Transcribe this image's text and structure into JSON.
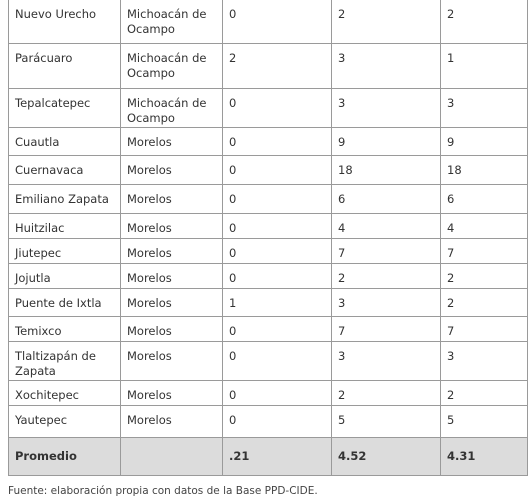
{
  "table": {
    "rows": [
      [
        "Nuevo Urecho",
        "Michoacán de Ocampo",
        "0",
        "2",
        "2"
      ],
      [
        "Parácuaro",
        "Michoacán de Ocampo",
        "2",
        "3",
        "1"
      ],
      [
        "Tepalcatepec",
        "Michoacán de Ocampo",
        "0",
        "3",
        "3"
      ],
      [
        "Cuautla",
        "Morelos",
        "0",
        "9",
        "9"
      ],
      [
        "Cuernavaca",
        "Morelos",
        "0",
        "18",
        "18"
      ],
      [
        "Emiliano Zapata",
        "Morelos",
        "0",
        "6",
        "6"
      ],
      [
        "Huitzilac",
        "Morelos",
        "0",
        "4",
        "4"
      ],
      [
        "Jiutepec",
        "Morelos",
        "0",
        "7",
        "7"
      ],
      [
        "Jojutla",
        "Morelos",
        "0",
        "2",
        "2"
      ],
      [
        "Puente de Ixtla",
        "Morelos",
        "1",
        "3",
        "2"
      ],
      [
        "Temixco",
        "Morelos",
        "0",
        "7",
        "7"
      ],
      [
        "Tlaltizapán de Zapata",
        "Morelos",
        "0",
        "3",
        "3"
      ],
      [
        "Xochitepec",
        "Morelos",
        "0",
        "2",
        "2"
      ],
      [
        "Yautepec",
        "Morelos",
        "0",
        "5",
        "5"
      ]
    ],
    "footer": [
      "Promedio",
      ".21",
      "4.52",
      "4.31"
    ]
  },
  "source": "Fuente: elaboración propia con datos de la Base PPD-CIDE."
}
